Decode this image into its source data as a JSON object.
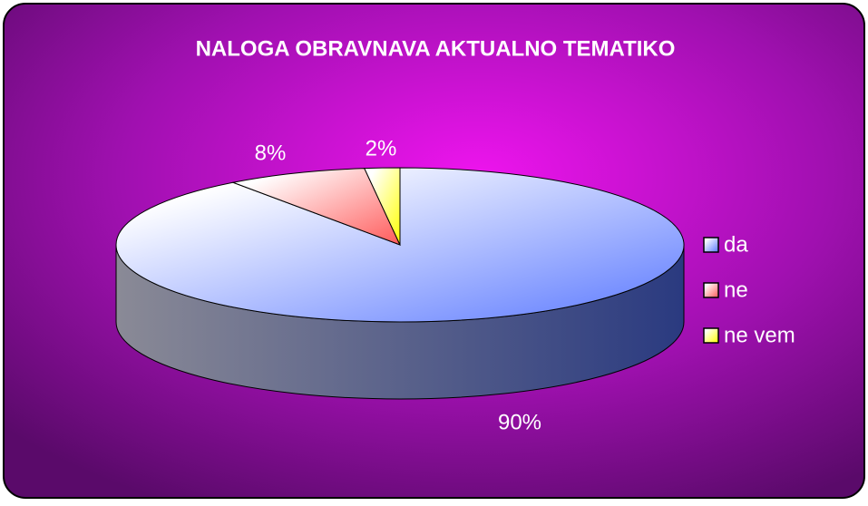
{
  "chart_data": {
    "type": "pie",
    "title": "NALOGA OBRAVNAVA AKTUALNO TEMATIKO",
    "categories": [
      "da",
      "ne",
      "ne vem"
    ],
    "values": [
      90,
      8,
      2
    ],
    "value_labels": [
      "90%",
      "8%",
      "2%"
    ],
    "colors": [
      "#5a78ff",
      "#ff5a5a",
      "#ffff00"
    ],
    "legend": "right"
  }
}
